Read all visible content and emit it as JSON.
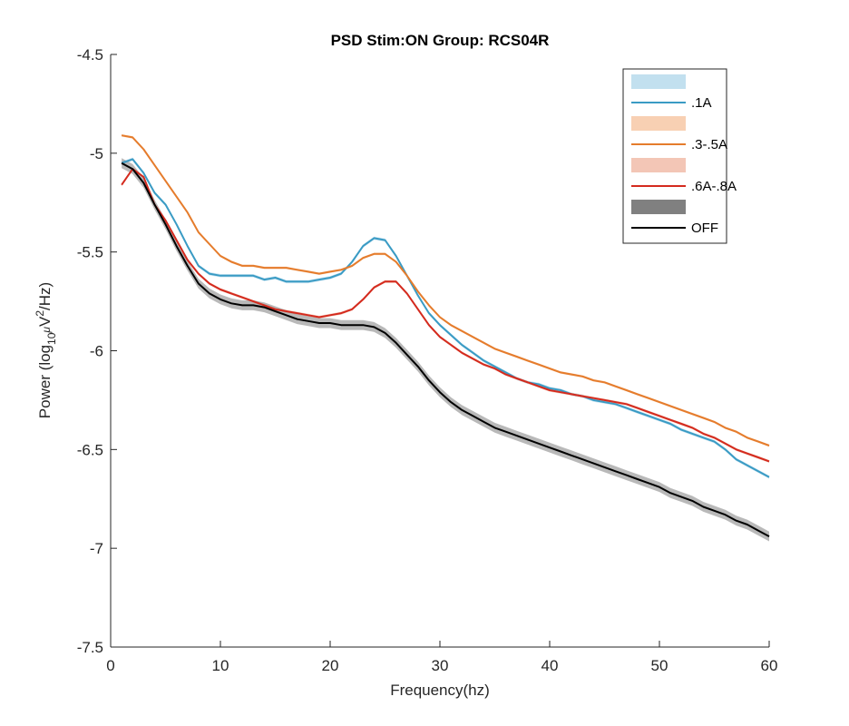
{
  "chart_data": {
    "type": "line",
    "title": "PSD Stim:ON Group: RCS04R",
    "xlabel": "Frequency(hz)",
    "ylabel": {
      "prefix": "Power (log",
      "sub": "10",
      "mu": "μ",
      "v": "V",
      "sup": "2",
      "suffix": "/Hz)"
    },
    "xlim": [
      0,
      60
    ],
    "ylim": [
      -7.5,
      -4.5
    ],
    "xticks": [
      0,
      10,
      20,
      30,
      40,
      50,
      60
    ],
    "yticks": [
      -4.5,
      -5,
      -5.5,
      -6,
      -6.5,
      -7,
      -7.5
    ],
    "ytick_labels": [
      "-4.5",
      "-5",
      "-5.5",
      "-6",
      "-6.5",
      "-7",
      "-7.5"
    ],
    "grid": false,
    "legend_position": "top-right",
    "legend": [
      {
        "kind": "band",
        "label": "",
        "color": "#c2e0ef"
      },
      {
        "kind": "line",
        "label": ".1A",
        "color": "#3a9bc4"
      },
      {
        "kind": "band",
        "label": "",
        "color": "#f8d0b3"
      },
      {
        "kind": "line",
        "label": ".3-.5A",
        "color": "#e57c2c"
      },
      {
        "kind": "band",
        "label": "",
        "color": "#f3c6b6"
      },
      {
        "kind": "line",
        "label": ".6A-.8A",
        "color": "#d42a1e"
      },
      {
        "kind": "band",
        "label": "",
        "color": "#808080"
      },
      {
        "kind": "line",
        "label": "OFF",
        "color": "#000000"
      }
    ],
    "series": [
      {
        "name": ".1A",
        "color": "#3a9bc4",
        "band_color": "#c2e0ef",
        "band": 0.008,
        "x": [
          1,
          2,
          3,
          4,
          5,
          6,
          7,
          8,
          9,
          10,
          11,
          12,
          13,
          14,
          15,
          16,
          17,
          18,
          19,
          20,
          21,
          22,
          23,
          24,
          25,
          26,
          27,
          28,
          29,
          30,
          31,
          32,
          33,
          34,
          35,
          36,
          37,
          38,
          39,
          40,
          41,
          42,
          43,
          44,
          45,
          46,
          47,
          48,
          49,
          50,
          51,
          52,
          53,
          54,
          55,
          56,
          57,
          58,
          59,
          60
        ],
        "y": [
          -5.05,
          -5.03,
          -5.1,
          -5.2,
          -5.26,
          -5.36,
          -5.47,
          -5.57,
          -5.61,
          -5.62,
          -5.62,
          -5.62,
          -5.62,
          -5.64,
          -5.63,
          -5.65,
          -5.65,
          -5.65,
          -5.64,
          -5.63,
          -5.61,
          -5.55,
          -5.47,
          -5.43,
          -5.44,
          -5.52,
          -5.62,
          -5.72,
          -5.81,
          -5.87,
          -5.92,
          -5.97,
          -6.01,
          -6.05,
          -6.08,
          -6.11,
          -6.14,
          -6.16,
          -6.17,
          -6.19,
          -6.2,
          -6.22,
          -6.23,
          -6.25,
          -6.26,
          -6.27,
          -6.29,
          -6.31,
          -6.33,
          -6.35,
          -6.37,
          -6.4,
          -6.42,
          -6.44,
          -6.46,
          -6.5,
          -6.55,
          -6.58,
          -6.61,
          -6.64
        ]
      },
      {
        "name": ".3-.5A",
        "color": "#e57c2c",
        "band_color": "#f8d0b3",
        "band": 0.006,
        "x": [
          1,
          2,
          3,
          4,
          5,
          6,
          7,
          8,
          9,
          10,
          11,
          12,
          13,
          14,
          15,
          16,
          17,
          18,
          19,
          20,
          21,
          22,
          23,
          24,
          25,
          26,
          27,
          28,
          29,
          30,
          31,
          32,
          33,
          34,
          35,
          36,
          37,
          38,
          39,
          40,
          41,
          42,
          43,
          44,
          45,
          46,
          47,
          48,
          49,
          50,
          51,
          52,
          53,
          54,
          55,
          56,
          57,
          58,
          59,
          60
        ],
        "y": [
          -4.91,
          -4.92,
          -4.98,
          -5.06,
          -5.14,
          -5.22,
          -5.3,
          -5.4,
          -5.46,
          -5.52,
          -5.55,
          -5.57,
          -5.57,
          -5.58,
          -5.58,
          -5.58,
          -5.59,
          -5.6,
          -5.61,
          -5.6,
          -5.59,
          -5.57,
          -5.53,
          -5.51,
          -5.51,
          -5.55,
          -5.62,
          -5.7,
          -5.77,
          -5.83,
          -5.87,
          -5.9,
          -5.93,
          -5.96,
          -5.99,
          -6.01,
          -6.03,
          -6.05,
          -6.07,
          -6.09,
          -6.11,
          -6.12,
          -6.13,
          -6.15,
          -6.16,
          -6.18,
          -6.2,
          -6.22,
          -6.24,
          -6.26,
          -6.28,
          -6.3,
          -6.32,
          -6.34,
          -6.36,
          -6.39,
          -6.41,
          -6.44,
          -6.46,
          -6.48
        ]
      },
      {
        "name": ".6A-.8A",
        "color": "#d42a1e",
        "band_color": "#f3c6b6",
        "band": 0.007,
        "x": [
          1,
          2,
          3,
          4,
          5,
          6,
          7,
          8,
          9,
          10,
          11,
          12,
          13,
          14,
          15,
          16,
          17,
          18,
          19,
          20,
          21,
          22,
          23,
          24,
          25,
          26,
          27,
          28,
          29,
          30,
          31,
          32,
          33,
          34,
          35,
          36,
          37,
          38,
          39,
          40,
          41,
          42,
          43,
          44,
          45,
          46,
          47,
          48,
          49,
          50,
          51,
          52,
          53,
          54,
          55,
          56,
          57,
          58,
          59,
          60
        ],
        "y": [
          -5.16,
          -5.08,
          -5.12,
          -5.26,
          -5.34,
          -5.44,
          -5.54,
          -5.61,
          -5.66,
          -5.69,
          -5.71,
          -5.73,
          -5.75,
          -5.77,
          -5.79,
          -5.8,
          -5.81,
          -5.82,
          -5.83,
          -5.82,
          -5.81,
          -5.79,
          -5.74,
          -5.68,
          -5.65,
          -5.65,
          -5.71,
          -5.79,
          -5.87,
          -5.93,
          -5.97,
          -6.01,
          -6.04,
          -6.07,
          -6.09,
          -6.12,
          -6.14,
          -6.16,
          -6.18,
          -6.2,
          -6.21,
          -6.22,
          -6.23,
          -6.24,
          -6.25,
          -6.26,
          -6.27,
          -6.29,
          -6.31,
          -6.33,
          -6.35,
          -6.37,
          -6.39,
          -6.42,
          -6.44,
          -6.47,
          -6.5,
          -6.52,
          -6.54,
          -6.56
        ]
      },
      {
        "name": "OFF",
        "color": "#000000",
        "band_color": "#808080",
        "band": 0.025,
        "x": [
          1,
          2,
          3,
          4,
          5,
          6,
          7,
          8,
          9,
          10,
          11,
          12,
          13,
          14,
          15,
          16,
          17,
          18,
          19,
          20,
          21,
          22,
          23,
          24,
          25,
          26,
          27,
          28,
          29,
          30,
          31,
          32,
          33,
          34,
          35,
          36,
          37,
          38,
          39,
          40,
          41,
          42,
          43,
          44,
          45,
          46,
          47,
          48,
          49,
          50,
          51,
          52,
          53,
          54,
          55,
          56,
          57,
          58,
          59,
          60
        ],
        "y": [
          -5.05,
          -5.08,
          -5.15,
          -5.26,
          -5.36,
          -5.47,
          -5.57,
          -5.66,
          -5.71,
          -5.74,
          -5.76,
          -5.77,
          -5.77,
          -5.78,
          -5.8,
          -5.82,
          -5.84,
          -5.85,
          -5.86,
          -5.86,
          -5.87,
          -5.87,
          -5.87,
          -5.88,
          -5.91,
          -5.96,
          -6.02,
          -6.08,
          -6.15,
          -6.21,
          -6.26,
          -6.3,
          -6.33,
          -6.36,
          -6.39,
          -6.41,
          -6.43,
          -6.45,
          -6.47,
          -6.49,
          -6.51,
          -6.53,
          -6.55,
          -6.57,
          -6.59,
          -6.61,
          -6.63,
          -6.65,
          -6.67,
          -6.69,
          -6.72,
          -6.74,
          -6.76,
          -6.79,
          -6.81,
          -6.83,
          -6.86,
          -6.88,
          -6.91,
          -6.94
        ]
      }
    ]
  }
}
